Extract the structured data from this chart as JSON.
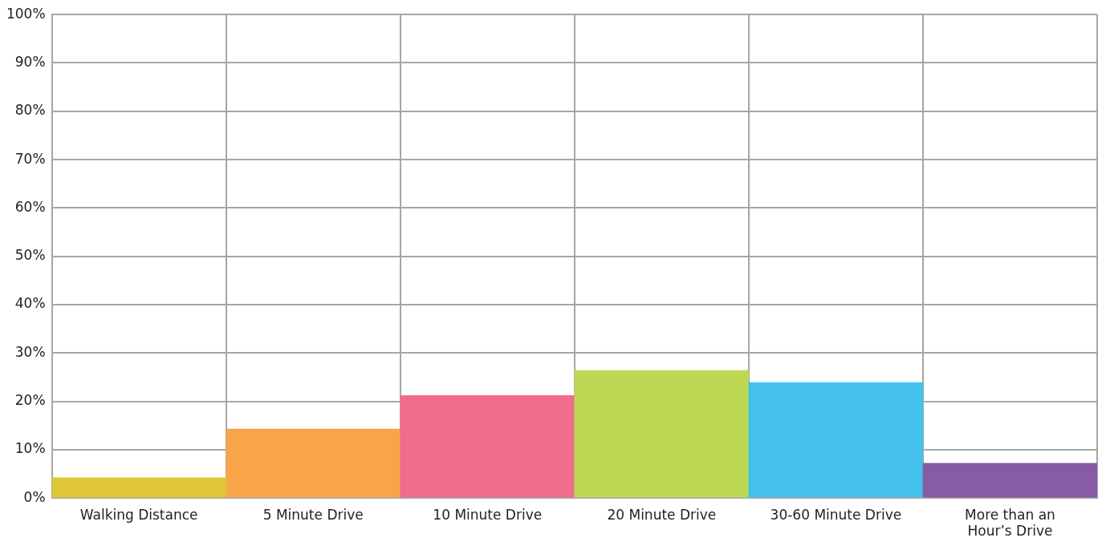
{
  "chart_data": {
    "type": "bar",
    "categories": [
      "Walking Distance",
      "5 Minute Drive",
      "10 Minute Drive",
      "20 Minute Drive",
      "30-60 Minute Drive",
      "More than an Hour’s Drive"
    ],
    "values": [
      4.2,
      14.3,
      21.2,
      26.4,
      23.9,
      7.2
    ],
    "colors": [
      "#dfc636",
      "#f8a54a",
      "#ef6c8b",
      "#bdd852",
      "#45c1ee",
      "#885ba5"
    ],
    "ylim": [
      0,
      100
    ],
    "yticks": [
      {
        "value": 0,
        "label": "0%"
      },
      {
        "value": 10,
        "label": "10%"
      },
      {
        "value": 20,
        "label": "20%"
      },
      {
        "value": 30,
        "label": "30%"
      },
      {
        "value": 40,
        "label": "40%"
      },
      {
        "value": 50,
        "label": "50%"
      },
      {
        "value": 60,
        "label": "60%"
      },
      {
        "value": 70,
        "label": "70%"
      },
      {
        "value": 80,
        "label": "80%"
      },
      {
        "value": 90,
        "label": "90%"
      },
      {
        "value": 100,
        "label": "100%"
      }
    ],
    "grid": true,
    "legend": false
  }
}
